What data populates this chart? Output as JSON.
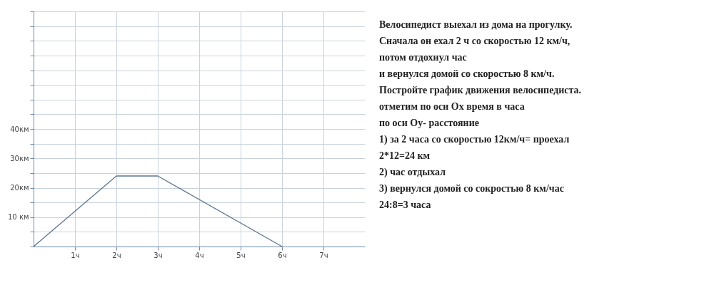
{
  "chart_data": {
    "type": "line",
    "x": [
      0,
      2,
      3,
      6
    ],
    "series": [
      {
        "color": "#5b7590",
        "values": [
          0,
          24,
          24,
          0
        ]
      }
    ],
    "xlim": [
      0,
      8
    ],
    "ylim": [
      0,
      80
    ],
    "xticks": [
      {
        "value": 1,
        "label": "1ч"
      },
      {
        "value": 2,
        "label": "2ч"
      },
      {
        "value": 3,
        "label": "3ч"
      },
      {
        "value": 4,
        "label": "4ч"
      },
      {
        "value": 5,
        "label": "5ч"
      },
      {
        "value": 6,
        "label": "6ч"
      },
      {
        "value": 7,
        "label": "7ч"
      }
    ],
    "yticks": [
      {
        "value": 0,
        "label": null
      },
      {
        "value": 5,
        "label": null
      },
      {
        "value": 10,
        "label": "10 км"
      },
      {
        "value": 15,
        "label": null
      },
      {
        "value": 20,
        "label": "20км"
      },
      {
        "value": 25,
        "label": null
      },
      {
        "value": 30,
        "label": "30км"
      },
      {
        "value": 35,
        "label": null
      },
      {
        "value": 40,
        "label": "40км"
      },
      {
        "value": 45,
        "label": null
      },
      {
        "value": 50,
        "label": null
      },
      {
        "value": 55,
        "label": null
      },
      {
        "value": 60,
        "label": null
      },
      {
        "value": 65,
        "label": null
      },
      {
        "value": 70,
        "label": null
      },
      {
        "value": 75,
        "label": null
      },
      {
        "value": 80,
        "label": null
      }
    ],
    "grid": true,
    "marker": "none",
    "line_style": "solid",
    "annotations": [
      "Велосипедист выехал из дома на прогулку.",
      "Сначала он ехал 2 ч  со скоростью 12 км/ч,",
      "потом отдохнул час",
      " и вернулся домой со скоростью 8 км/ч.",
      "Постройте график движения велосипедиста.",
      "отметим по оси Ох время в часа",
      "по оси Оу- расстояние",
      "1) за 2 часа со скоростью 12км/ч= проехал",
      "2*12=24 км",
      "2) час отдыхал",
      "3) вернулся домой со сокростью 8 км/час",
      "24:8=3 часа"
    ]
  }
}
